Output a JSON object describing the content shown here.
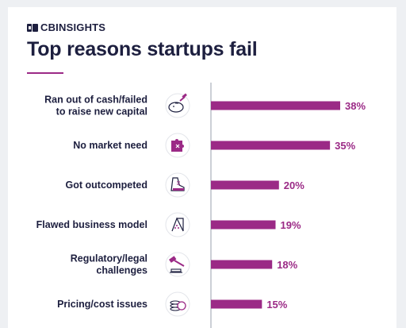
{
  "brand": {
    "name": "CBINSIGHTS"
  },
  "header": {
    "title": "Top reasons startups fail"
  },
  "colors": {
    "bar": "#9b2a86",
    "label": "#1d1f3f",
    "value": "#9b2a86",
    "axis": "#9aa0ad"
  },
  "chart_data": {
    "type": "bar",
    "orientation": "horizontal",
    "title": "Top reasons startups fail",
    "categories": [
      "Ran out of cash/failed to raise new capital",
      "No market need",
      "Got outcompeted",
      "Flawed business model",
      "Regulatory/legal challenges",
      "Pricing/cost issues"
    ],
    "category_lines": [
      [
        "Ran out of cash/failed",
        "to raise new capital"
      ],
      [
        "No market need"
      ],
      [
        "Got outcompeted"
      ],
      [
        "Flawed business model"
      ],
      [
        "Regulatory/legal",
        "challenges"
      ],
      [
        "Pricing/cost issues"
      ]
    ],
    "values": [
      38,
      35,
      20,
      19,
      18,
      15
    ],
    "value_labels": [
      "38%",
      "35%",
      "20%",
      "19%",
      "18%",
      "15%"
    ],
    "icons": [
      "piggy-bank-icon",
      "puzzle-piece-icon",
      "sneaker-icon",
      "house-of-cards-icon",
      "gavel-icon",
      "coin-stack-icon"
    ],
    "xlim": [
      0,
      38
    ],
    "grid": false,
    "legend": "none"
  }
}
